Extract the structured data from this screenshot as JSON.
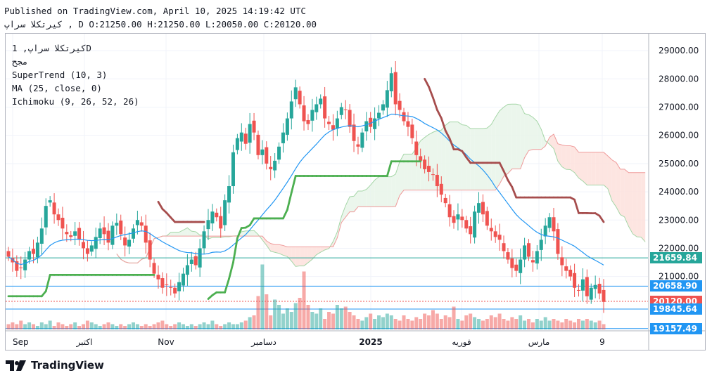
{
  "header": {
    "published": "Published on TradingView.com, April 10, 2025 14:19:42 UTC",
    "symbol_line": "کیرتکلا سراپ , D O:21250.00 H:21250.00 L:20050.00 C:20120.00"
  },
  "legend": {
    "symbol": "کیرتکلا سراپ, 1D",
    "line2": "مجح",
    "supertrend": "SuperTrend (10, 3)",
    "ma": "MA (25, close, 0)",
    "ichimoku": "Ichimoku (9, 26, 52, 26)"
  },
  "footer": {
    "brand": "TradingView"
  },
  "colors": {
    "up": "#26a69a",
    "down": "#ef5350",
    "supertrend_up": "#4caf50",
    "supertrend_down": "#a64d4d",
    "ma": "#2196f3",
    "cloud_green": "#e8f5e9",
    "cloud_red": "#fde0dc"
  },
  "chart_data": {
    "type": "candlestick",
    "x_tick_labels": [
      "Sep",
      "اکتبر",
      "Nov",
      "دسامبر",
      "2025",
      "فوریه",
      "مارس",
      "9"
    ],
    "y_ticks": [
      21000,
      22000,
      23000,
      24000,
      25000,
      26000,
      27000,
      28000,
      29000
    ],
    "y_tick_labels": [
      "21000.00",
      "22000.00",
      "23000.00",
      "24000.00",
      "25000.00",
      "26000.00",
      "27000.00",
      "28000.00",
      "29000.00"
    ],
    "ylim": [
      19100,
      29600
    ],
    "price_labels": [
      {
        "value": 21659.84,
        "text": "21659.84",
        "color": "#26a69a"
      },
      {
        "value": 20658.9,
        "text": "20658.90",
        "color": "#2196f3"
      },
      {
        "value": 20120.0,
        "text": "20120.00",
        "color": "#ef5350"
      },
      {
        "value": 19845.64,
        "text": "19845.64",
        "color": "#2196f3"
      },
      {
        "value": 19157.49,
        "text": "19157.49",
        "color": "#2196f3"
      }
    ],
    "close_series": [
      21700,
      21500,
      21200,
      21300,
      21600,
      21900,
      21800,
      22200,
      22700,
      23500,
      23700,
      23200,
      23000,
      22700,
      22500,
      22400,
      22600,
      22300,
      22000,
      21800,
      22100,
      22400,
      22700,
      22500,
      22200,
      22800,
      22900,
      22500,
      22100,
      22300,
      22700,
      23000,
      22800,
      22200,
      21600,
      21100,
      20900,
      20600,
      20700,
      20600,
      20400,
      20800,
      21100,
      21400,
      21600,
      21400,
      22000,
      22600,
      23000,
      23300,
      23100,
      22700,
      23700,
      24200,
      25400,
      25900,
      26100,
      25700,
      26400,
      26100,
      25300,
      25500,
      25000,
      24800,
      25100,
      25600,
      26100,
      26600,
      27200,
      27700,
      27100,
      26500,
      26400,
      26900,
      27100,
      27300,
      26600,
      26400,
      26200,
      26600,
      27000,
      26900,
      26300,
      25800,
      25600,
      26100,
      26500,
      26300,
      26600,
      26800,
      27100,
      27600,
      28200,
      27100,
      26900,
      26500,
      26300,
      25900,
      25300,
      25100,
      24800,
      24700,
      24600,
      24200,
      23900,
      23600,
      23100,
      22900,
      23200,
      23000,
      22700,
      22500,
      23300,
      23600,
      23200,
      22800,
      22600,
      22400,
      22300,
      21900,
      21600,
      21300,
      21200,
      21600,
      22100,
      21700,
      21500,
      21900,
      22300,
      22800,
      23100,
      22600,
      21800,
      21400,
      21200,
      21000,
      20600,
      20500,
      20900,
      20300,
      20600,
      20700,
      20400,
      20100
    ],
    "volume_rel": [
      0.3,
      0.4,
      0.3,
      0.5,
      0.3,
      0.4,
      0.3,
      0.2,
      0.4,
      0.3,
      0.5,
      0.2,
      0.4,
      0.3,
      0.2,
      0.3,
      0.4,
      0.2,
      0.3,
      0.5,
      0.4,
      0.3,
      0.2,
      0.3,
      0.4,
      0.3,
      0.2,
      0.3,
      0.2,
      0.3,
      0.4,
      0.3,
      0.2,
      0.3,
      0.2,
      0.3,
      0.4,
      0.5,
      0.3,
      0.2,
      0.3,
      0.4,
      0.3,
      0.2,
      0.3,
      0.2,
      0.3,
      0.4,
      0.3,
      0.5,
      0.3,
      0.2,
      0.3,
      0.4,
      0.3,
      0.3,
      0.4,
      0.5,
      0.7,
      0.8,
      1.9,
      3.7,
      2.0,
      0.8,
      1.7,
      1.4,
      0.9,
      1.2,
      1.0,
      1.5,
      1.8,
      3.3,
      1.4,
      1.0,
      0.9,
      1.2,
      0.6,
      1.0,
      0.9,
      1.4,
      1.2,
      1.3,
      1.0,
      0.8,
      0.6,
      0.5,
      0.7,
      0.9,
      0.6,
      0.8,
      0.7,
      0.9,
      0.8,
      0.6,
      0.5,
      0.8,
      0.6,
      0.5,
      0.7,
      0.6,
      0.9,
      0.8,
      1.1,
      0.9,
      0.6,
      0.8,
      0.7,
      1.3,
      0.6,
      0.5,
      0.8,
      0.9,
      0.7,
      0.6,
      0.5,
      0.6,
      0.8,
      0.7,
      0.9,
      0.6,
      0.5,
      0.7,
      0.6,
      0.8,
      0.5,
      0.6,
      0.4,
      0.6,
      0.5,
      0.7,
      0.5,
      0.6,
      0.5,
      0.4,
      0.6,
      0.5,
      0.4,
      0.6,
      0.5,
      0.6,
      0.5,
      0.4,
      0.5,
      0.3
    ]
  }
}
